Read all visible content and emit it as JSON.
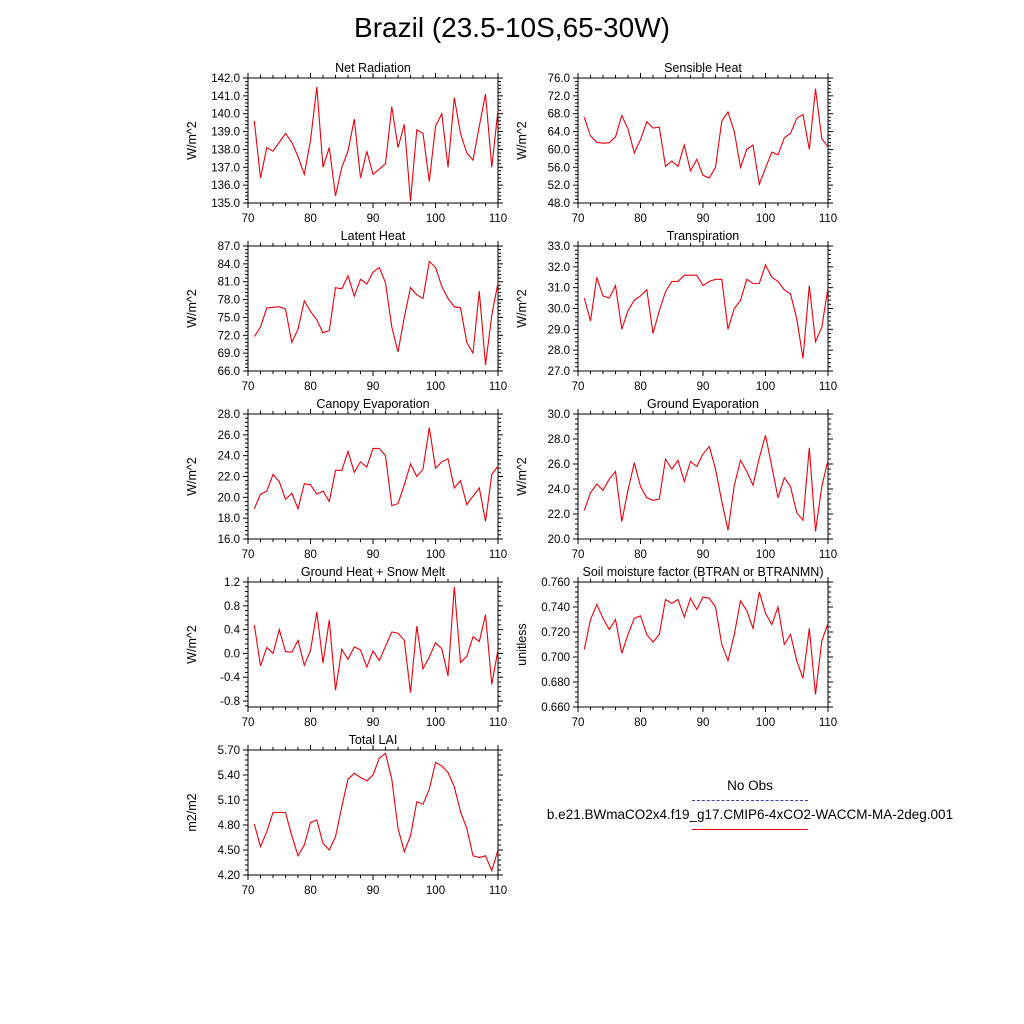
{
  "title": "Brazil (23.5-10S,65-30W)",
  "colors": {
    "series": "#e8000b",
    "obs": "#3b3bb3",
    "axis": "#000000"
  },
  "legend": {
    "obs_label": "No Obs",
    "model_label": "b.e21.BWmaCO2x4.f19_g17.CMIP6-4xCO2-WACCM-MA-2deg.001"
  },
  "chart_data": [
    {
      "type": "line",
      "title": "Net Radiation",
      "xlabel": "",
      "ylabel": "W/m^2",
      "xlim": [
        70,
        110
      ],
      "ylim": [
        135.0,
        142.0
      ],
      "xticks": [
        70,
        80,
        90,
        100,
        110
      ],
      "yticks": [
        135.0,
        136.0,
        137.0,
        138.0,
        139.0,
        140.0,
        141.0,
        142.0
      ],
      "ytick_labels": [
        "135.0",
        "136.0",
        "137.0",
        "138.0",
        "139.0",
        "140.0",
        "141.0",
        "142.0"
      ],
      "x": [
        71,
        72,
        73,
        74,
        75,
        76,
        77,
        78,
        79,
        80,
        81,
        82,
        83,
        84,
        85,
        86,
        87,
        88,
        89,
        90,
        91,
        92,
        93,
        94,
        95,
        96,
        97,
        98,
        99,
        100,
        101,
        102,
        103,
        104,
        105,
        106,
        107,
        108,
        109,
        110
      ],
      "values": [
        139.6,
        136.4,
        138.1,
        137.9,
        138.4,
        138.9,
        138.4,
        137.6,
        136.6,
        138.5,
        141.5,
        137.0,
        138.1,
        135.4,
        137.0,
        137.9,
        139.7,
        136.4,
        137.9,
        136.6,
        136.9,
        137.2,
        140.4,
        138.1,
        139.4,
        135.1,
        139.1,
        138.9,
        136.2,
        139.3,
        140.0,
        137.0,
        140.9,
        138.9,
        137.8,
        137.4,
        139.3,
        141.1,
        137.0,
        140.2
      ],
      "series_name": ""
    },
    {
      "type": "line",
      "title": "Sensible Heat",
      "xlabel": "",
      "ylabel": "W/m^2",
      "xlim": [
        70,
        110
      ],
      "ylim": [
        48.0,
        76.0
      ],
      "xticks": [
        70,
        80,
        90,
        100,
        110
      ],
      "yticks": [
        48,
        52,
        56,
        60,
        64,
        68,
        72,
        76
      ],
      "ytick_labels": [
        "48.0",
        "52.0",
        "56.0",
        "60.0",
        "64.0",
        "68.0",
        "72.0",
        "76.0"
      ],
      "x": [
        71,
        72,
        73,
        74,
        75,
        76,
        77,
        78,
        79,
        80,
        81,
        82,
        83,
        84,
        85,
        86,
        87,
        88,
        89,
        90,
        91,
        92,
        93,
        94,
        95,
        96,
        97,
        98,
        99,
        100,
        101,
        102,
        103,
        104,
        105,
        106,
        107,
        108,
        109,
        110
      ],
      "values": [
        67.2,
        63.0,
        61.6,
        61.4,
        61.5,
        62.8,
        67.6,
        64.6,
        59.2,
        62.2,
        66.2,
        64.8,
        65.0,
        56.2,
        57.4,
        56.2,
        61.0,
        55.2,
        57.8,
        54.2,
        53.6,
        56.0,
        66.4,
        68.4,
        64.0,
        56.0,
        60.0,
        61.0,
        52.2,
        55.8,
        59.4,
        58.8,
        62.6,
        63.6,
        67.0,
        67.8,
        60.0,
        73.6,
        62.4,
        60.6
      ]
    },
    {
      "type": "line",
      "title": "Latent Heat",
      "xlabel": "",
      "ylabel": "W/m^2",
      "xlim": [
        70,
        110
      ],
      "ylim": [
        66.0,
        87.0
      ],
      "xticks": [
        70,
        80,
        90,
        100,
        110
      ],
      "yticks": [
        66,
        69,
        72,
        75,
        78,
        81,
        84,
        87
      ],
      "ytick_labels": [
        "66.0",
        "69.0",
        "72.0",
        "75.0",
        "78.0",
        "81.0",
        "84.0",
        "87.0"
      ],
      "x": [
        71,
        72,
        73,
        74,
        75,
        76,
        77,
        78,
        79,
        80,
        81,
        82,
        83,
        84,
        85,
        86,
        87,
        88,
        89,
        90,
        91,
        92,
        93,
        94,
        95,
        96,
        97,
        98,
        99,
        100,
        101,
        102,
        103,
        104,
        105,
        106,
        107,
        108,
        109,
        110
      ],
      "values": [
        71.8,
        73.4,
        76.6,
        76.7,
        76.8,
        76.4,
        70.8,
        73.0,
        77.8,
        76.0,
        74.6,
        72.4,
        72.8,
        80.0,
        79.8,
        82.0,
        78.6,
        81.4,
        80.6,
        82.6,
        83.4,
        80.8,
        73.4,
        69.2,
        75.0,
        80.0,
        78.8,
        78.2,
        84.4,
        83.4,
        80.2,
        78.2,
        76.8,
        76.6,
        70.8,
        69.0,
        79.4,
        67.0,
        75.4,
        80.8
      ]
    },
    {
      "type": "line",
      "title": "Transpiration",
      "xlabel": "",
      "ylabel": "W/m^2",
      "xlim": [
        70,
        110
      ],
      "ylim": [
        27.0,
        33.0
      ],
      "xticks": [
        70,
        80,
        90,
        100,
        110
      ],
      "yticks": [
        27,
        28,
        29,
        30,
        31,
        32,
        33
      ],
      "ytick_labels": [
        "27.0",
        "28.0",
        "29.0",
        "30.0",
        "31.0",
        "32.0",
        "33.0"
      ],
      "x": [
        71,
        72,
        73,
        74,
        75,
        76,
        77,
        78,
        79,
        80,
        81,
        82,
        83,
        84,
        85,
        86,
        87,
        88,
        89,
        90,
        91,
        92,
        93,
        94,
        95,
        96,
        97,
        98,
        99,
        100,
        101,
        102,
        103,
        104,
        105,
        106,
        107,
        108,
        109,
        110
      ],
      "values": [
        30.5,
        29.4,
        31.5,
        30.6,
        30.5,
        31.1,
        29.0,
        29.9,
        30.4,
        30.6,
        30.9,
        28.8,
        29.9,
        30.8,
        31.3,
        31.3,
        31.6,
        31.6,
        31.6,
        31.1,
        31.3,
        31.4,
        31.4,
        29.0,
        30.0,
        30.4,
        31.4,
        31.2,
        31.2,
        32.1,
        31.5,
        31.3,
        30.9,
        30.7,
        29.5,
        27.6,
        31.1,
        28.4,
        29.1,
        31.0
      ]
    },
    {
      "type": "line",
      "title": "Canopy Evaporation",
      "xlabel": "",
      "ylabel": "W/m^2",
      "xlim": [
        70,
        110
      ],
      "ylim": [
        16.0,
        28.0
      ],
      "xticks": [
        70,
        80,
        90,
        100,
        110
      ],
      "yticks": [
        16,
        18,
        20,
        22,
        24,
        26,
        28
      ],
      "ytick_labels": [
        "16.0",
        "18.0",
        "20.0",
        "22.0",
        "24.0",
        "26.0",
        "28.0"
      ],
      "x": [
        71,
        72,
        73,
        74,
        75,
        76,
        77,
        78,
        79,
        80,
        81,
        82,
        83,
        84,
        85,
        86,
        87,
        88,
        89,
        90,
        91,
        92,
        93,
        94,
        95,
        96,
        97,
        98,
        99,
        100,
        101,
        102,
        103,
        104,
        105,
        106,
        107,
        108,
        109,
        110
      ],
      "values": [
        18.9,
        20.3,
        20.6,
        22.2,
        21.5,
        19.8,
        20.4,
        18.9,
        21.3,
        21.2,
        20.3,
        20.6,
        19.6,
        22.6,
        22.6,
        24.4,
        22.4,
        23.4,
        22.9,
        24.7,
        24.7,
        24.0,
        19.2,
        19.4,
        21.2,
        23.2,
        22.0,
        22.7,
        26.7,
        22.8,
        23.4,
        23.7,
        20.9,
        21.6,
        19.3,
        20.1,
        20.9,
        17.7,
        22.2,
        23.0
      ]
    },
    {
      "type": "line",
      "title": "Ground Evaporation",
      "xlabel": "",
      "ylabel": "W/m^2",
      "xlim": [
        70,
        110
      ],
      "ylim": [
        20.0,
        30.0
      ],
      "xticks": [
        70,
        80,
        90,
        100,
        110
      ],
      "yticks": [
        20,
        22,
        24,
        26,
        28,
        30
      ],
      "ytick_labels": [
        "20.0",
        "22.0",
        "24.0",
        "26.0",
        "28.0",
        "30.0"
      ],
      "x": [
        71,
        72,
        73,
        74,
        75,
        76,
        77,
        78,
        79,
        80,
        81,
        82,
        83,
        84,
        85,
        86,
        87,
        88,
        89,
        90,
        91,
        92,
        93,
        94,
        95,
        96,
        97,
        98,
        99,
        100,
        101,
        102,
        103,
        104,
        105,
        106,
        107,
        108,
        109,
        110
      ],
      "values": [
        22.3,
        23.7,
        24.4,
        23.9,
        24.8,
        25.4,
        21.4,
        23.9,
        26.1,
        24.2,
        23.3,
        23.1,
        23.2,
        26.4,
        25.6,
        26.3,
        24.6,
        26.2,
        25.8,
        26.8,
        27.4,
        25.6,
        23.0,
        20.7,
        24.3,
        26.3,
        25.4,
        24.3,
        26.5,
        28.3,
        25.8,
        23.3,
        24.9,
        24.2,
        22.1,
        21.5,
        27.3,
        20.6,
        24.2,
        26.3
      ]
    },
    {
      "type": "line",
      "title": "Ground Heat + Snow Melt",
      "xlabel": "",
      "ylabel": "W/m^2",
      "xlim": [
        70,
        110
      ],
      "ylim": [
        -0.9,
        1.2
      ],
      "xticks": [
        70,
        80,
        90,
        100,
        110
      ],
      "yticks": [
        -0.8,
        -0.4,
        0.0,
        0.4,
        0.8,
        1.2
      ],
      "ytick_labels": [
        "-0.8",
        "-0.4",
        "0.0",
        "0.4",
        "0.8",
        "1.2"
      ],
      "x": [
        71,
        72,
        73,
        74,
        75,
        76,
        77,
        78,
        79,
        80,
        81,
        82,
        83,
        84,
        85,
        86,
        87,
        88,
        89,
        90,
        91,
        92,
        93,
        94,
        95,
        96,
        97,
        98,
        99,
        100,
        101,
        102,
        103,
        104,
        105,
        106,
        107,
        108,
        109,
        110
      ],
      "values": [
        0.48,
        -0.21,
        0.1,
        0.0,
        0.4,
        0.03,
        0.02,
        0.22,
        -0.2,
        0.05,
        0.7,
        -0.16,
        0.56,
        -0.62,
        0.07,
        -0.1,
        0.11,
        0.06,
        -0.23,
        0.04,
        -0.12,
        0.12,
        0.36,
        0.34,
        0.22,
        -0.66,
        0.46,
        -0.26,
        -0.06,
        0.18,
        0.08,
        -0.38,
        1.12,
        -0.15,
        -0.05,
        0.28,
        0.2,
        0.65,
        -0.52,
        0.06
      ]
    },
    {
      "type": "line",
      "title": "Soil moisture factor (BTRAN or BTRANMN)",
      "xlabel": "",
      "ylabel": "unitless",
      "xlim": [
        70,
        110
      ],
      "ylim": [
        0.66,
        0.76
      ],
      "xticks": [
        70,
        80,
        90,
        100,
        110
      ],
      "yticks": [
        0.66,
        0.68,
        0.7,
        0.72,
        0.74,
        0.76
      ],
      "ytick_labels": [
        "0.660",
        "0.680",
        "0.700",
        "0.720",
        "0.740",
        "0.760"
      ],
      "x": [
        71,
        72,
        73,
        74,
        75,
        76,
        77,
        78,
        79,
        80,
        81,
        82,
        83,
        84,
        85,
        86,
        87,
        88,
        89,
        90,
        91,
        92,
        93,
        94,
        95,
        96,
        97,
        98,
        99,
        100,
        101,
        102,
        103,
        104,
        105,
        106,
        107,
        108,
        109,
        110
      ],
      "values": [
        0.706,
        0.73,
        0.742,
        0.731,
        0.722,
        0.73,
        0.703,
        0.718,
        0.731,
        0.733,
        0.718,
        0.712,
        0.718,
        0.746,
        0.743,
        0.746,
        0.732,
        0.747,
        0.738,
        0.748,
        0.747,
        0.74,
        0.71,
        0.697,
        0.718,
        0.745,
        0.737,
        0.723,
        0.752,
        0.735,
        0.726,
        0.74,
        0.71,
        0.718,
        0.697,
        0.683,
        0.723,
        0.67,
        0.713,
        0.727
      ]
    },
    {
      "type": "line",
      "title": "Total LAI",
      "xlabel": "",
      "ylabel": "m2/m2",
      "xlim": [
        70,
        110
      ],
      "ylim": [
        4.2,
        5.7
      ],
      "xticks": [
        70,
        80,
        90,
        100,
        110
      ],
      "yticks": [
        4.2,
        4.5,
        4.8,
        5.1,
        5.4,
        5.7
      ],
      "ytick_labels": [
        "4.20",
        "4.50",
        "4.80",
        "5.10",
        "5.40",
        "5.70"
      ],
      "x": [
        71,
        72,
        73,
        74,
        75,
        76,
        77,
        78,
        79,
        80,
        81,
        82,
        83,
        84,
        85,
        86,
        87,
        88,
        89,
        90,
        91,
        92,
        93,
        94,
        95,
        96,
        97,
        98,
        99,
        100,
        101,
        102,
        103,
        104,
        105,
        106,
        107,
        108,
        109,
        110
      ],
      "values": [
        4.81,
        4.54,
        4.72,
        4.95,
        4.95,
        4.95,
        4.67,
        4.43,
        4.56,
        4.83,
        4.86,
        4.58,
        4.5,
        4.66,
        5.02,
        5.35,
        5.42,
        5.37,
        5.33,
        5.4,
        5.6,
        5.66,
        5.35,
        4.76,
        4.48,
        4.67,
        5.08,
        5.05,
        5.23,
        5.55,
        5.51,
        5.43,
        5.26,
        4.96,
        4.76,
        4.43,
        4.41,
        4.43,
        4.25,
        4.5
      ]
    }
  ]
}
